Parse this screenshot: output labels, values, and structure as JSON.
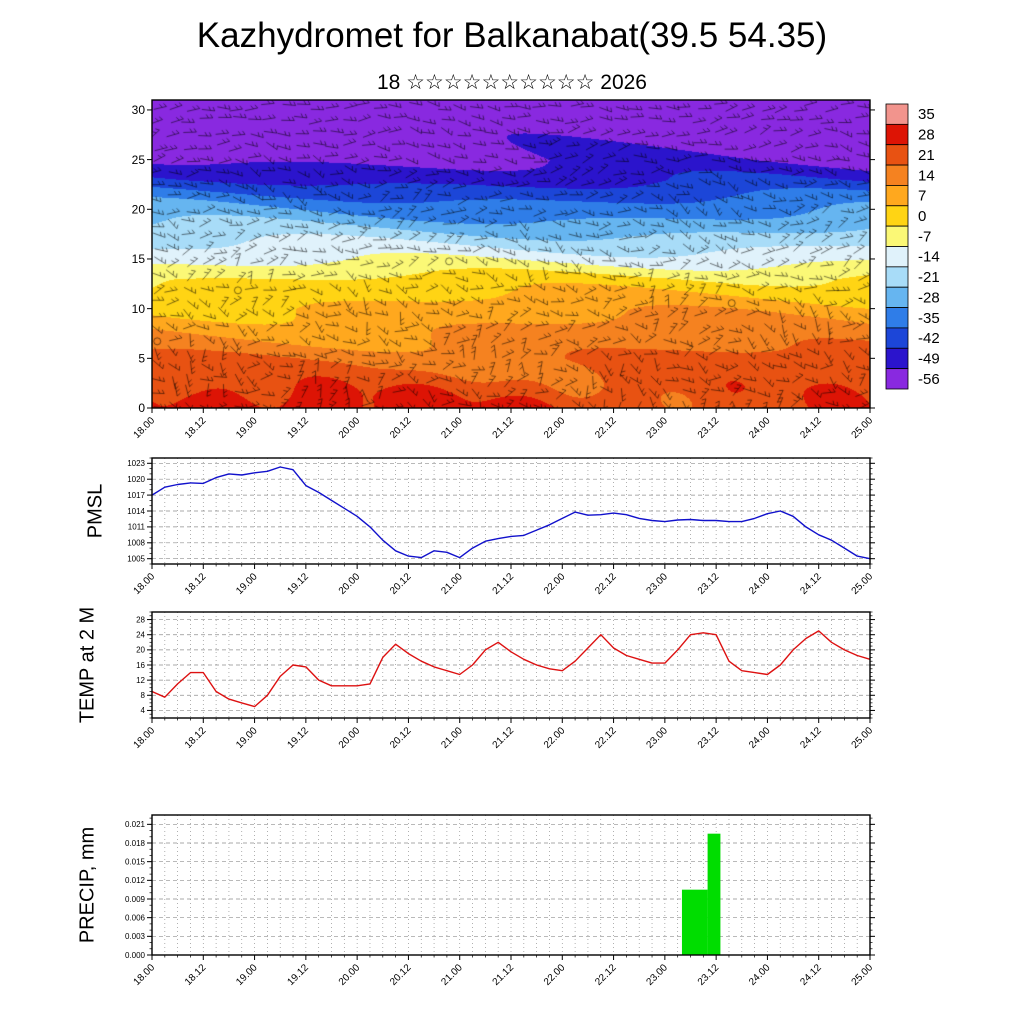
{
  "title": "Kazhydromet for Balkanabat(39.5 54.35)",
  "subtitle": "18 ☆☆☆☆☆☆☆☆☆☆ 2026",
  "x_axis": {
    "labels": [
      "18.00",
      "18.12",
      "19.00",
      "19.12",
      "20.00",
      "20.12",
      "21.00",
      "21.12",
      "22.00",
      "22.12",
      "23.00",
      "23.12",
      "24.00",
      "24.12",
      "25.00"
    ],
    "hours_start": 0,
    "hours_end": 168,
    "label_step_hours": 12,
    "minor_tick_hours": 3
  },
  "chart_data": [
    {
      "id": "cross_section",
      "type": "heatmap",
      "description": "Time-height temperature cross-section (deg C) with wind barbs overlay",
      "y_ticks": [
        0,
        5,
        10,
        15,
        20,
        25,
        30
      ],
      "ylim": [
        0,
        31
      ],
      "profile_height_km": [
        0,
        5,
        10,
        13,
        15,
        17,
        19,
        21,
        23,
        25,
        28,
        31
      ],
      "profile_temp_c": [
        28,
        20,
        10,
        2,
        -8,
        -16,
        -25,
        -33,
        -43,
        -50,
        -56,
        -58
      ],
      "colorbar_levels": [
        35,
        28,
        21,
        14,
        7,
        0,
        -7,
        -14,
        -21,
        -28,
        -35,
        -42,
        -49,
        -56
      ],
      "colorbar_colors": [
        "#f2948d",
        "#dd1405",
        "#e85212",
        "#f58220",
        "#ffa81e",
        "#ffd414",
        "#fbf876",
        "#e0f2fb",
        "#a8dcf8",
        "#66b5f0",
        "#2f7de8",
        "#1c46d8",
        "#2b14cc",
        "#8929e0"
      ]
    },
    {
      "id": "pmsl",
      "type": "line",
      "ylabel": "PMSL",
      "color": "#1111cc",
      "y_ticks": [
        1005,
        1008,
        1011,
        1014,
        1017,
        1020,
        1023
      ],
      "ylim": [
        1004,
        1024
      ],
      "y_minor_step": 1,
      "hours_step": 3,
      "values": [
        1017,
        1018.5,
        1019,
        1019.3,
        1019.2,
        1020.3,
        1021,
        1020.8,
        1021.2,
        1021.5,
        1022.3,
        1021.8,
        1018.8,
        1017.5,
        1016,
        1014.5,
        1013,
        1011,
        1008.5,
        1006.5,
        1005.5,
        1005.2,
        1006.5,
        1006.2,
        1005.2,
        1007,
        1008.3,
        1008.8,
        1009.2,
        1009.4,
        1010.4,
        1011.4,
        1012.6,
        1013.8,
        1013.2,
        1013.3,
        1013.6,
        1013.3,
        1012.6,
        1012.2,
        1012,
        1012.3,
        1012.4,
        1012.2,
        1012.2,
        1012,
        1012,
        1012.6,
        1013.5,
        1014,
        1013,
        1011,
        1009.5,
        1008.5,
        1007,
        1005.5,
        1005
      ]
    },
    {
      "id": "temp2m",
      "type": "line",
      "ylabel": "TEMP at 2 M",
      "color": "#dd1111",
      "y_ticks": [
        4,
        8,
        12,
        16,
        20,
        24,
        28
      ],
      "ylim": [
        2,
        30
      ],
      "y_minor_step": 1,
      "hours_step": 3,
      "values": [
        9,
        7.5,
        11,
        14,
        14,
        9,
        7,
        6,
        5,
        8,
        13,
        16,
        15.5,
        12,
        10.5,
        10.5,
        10.5,
        11,
        18,
        21.5,
        19,
        17,
        15.5,
        14.5,
        13.5,
        16,
        20,
        22,
        19.5,
        17.5,
        16,
        15,
        14.5,
        17,
        20.5,
        24,
        20.5,
        18.5,
        17.5,
        16.5,
        16.5,
        20,
        24,
        24.5,
        24,
        17,
        14.5,
        14,
        13.5,
        16,
        20,
        23,
        25,
        22,
        20,
        18.5,
        17.5
      ]
    },
    {
      "id": "precip",
      "type": "bar",
      "ylabel": "PRECIP, mm",
      "color": "#00dd00",
      "y_ticks": [
        0,
        0.003,
        0.006,
        0.009,
        0.012,
        0.015,
        0.018,
        0.021
      ],
      "y_tick_labels": [
        "0.000",
        "0.003",
        "0.006",
        "0.009",
        "0.012",
        "0.015",
        "0.018",
        "0.021"
      ],
      "ylim": [
        0,
        0.0225
      ],
      "y_minor_step": 0.001,
      "bars": [
        {
          "start_hour": 124,
          "end_hour": 130,
          "value": 0.0105
        },
        {
          "start_hour": 130,
          "end_hour": 133,
          "value": 0.0195
        }
      ]
    }
  ]
}
